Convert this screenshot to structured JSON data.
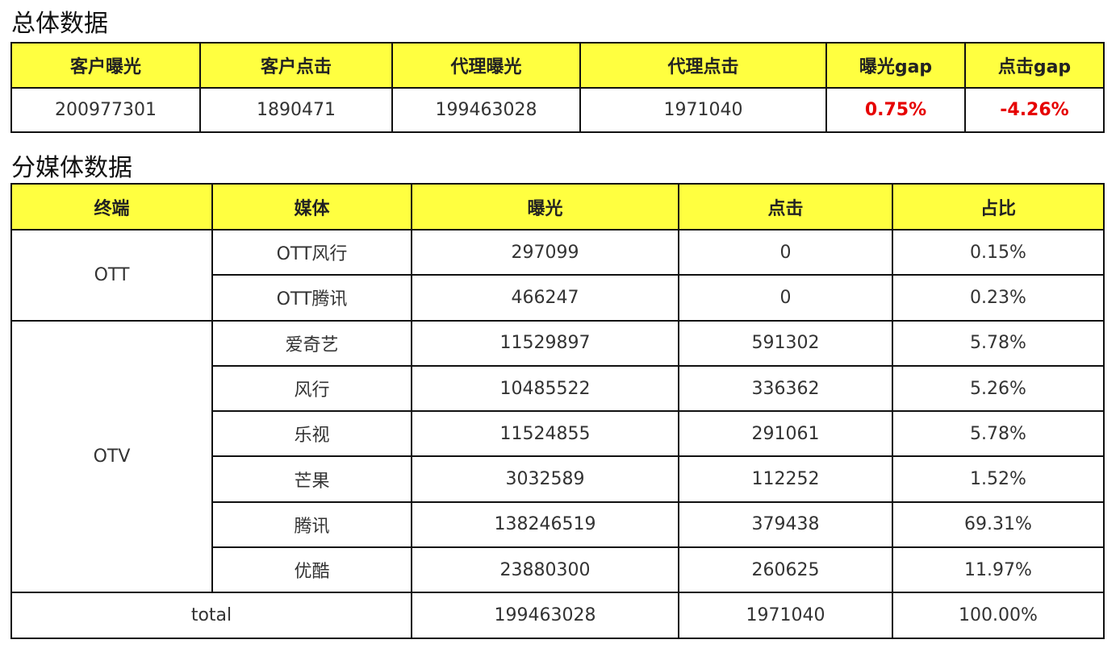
{
  "overall": {
    "title": "总体数据",
    "headers": [
      "客户曝光",
      "客户点击",
      "代理曝光",
      "代理点击",
      "曝光gap",
      "点击gap"
    ],
    "values": [
      "200977301",
      "1890471",
      "199463028",
      "1971040",
      "0.75%",
      "-4.26%"
    ]
  },
  "media": {
    "title": "分媒体数据",
    "headers": [
      "终端",
      "媒体",
      "曝光",
      "点击",
      "占比"
    ],
    "groups": [
      "OTT",
      "OTV"
    ],
    "rows": [
      [
        "OTT风行",
        "297099",
        "0",
        "0.15%"
      ],
      [
        "OTT腾讯",
        "466247",
        "0",
        "0.23%"
      ],
      [
        "爱奇艺",
        "11529897",
        "591302",
        "5.78%"
      ],
      [
        "风行",
        "10485522",
        "336362",
        "5.26%"
      ],
      [
        "乐视",
        "11524855",
        "291061",
        "5.78%"
      ],
      [
        "芒果",
        "3032589",
        "112252",
        "1.52%"
      ],
      [
        "腾讯",
        "138246519",
        "379438",
        "69.31%"
      ],
      [
        "优酷",
        "23880300",
        "260625",
        "11.97%"
      ]
    ],
    "total": [
      "total",
      "199463028",
      "1971040",
      "100.00%"
    ]
  },
  "colors": {
    "header_bg": "#ffff40",
    "gap_text": "#e60000"
  }
}
